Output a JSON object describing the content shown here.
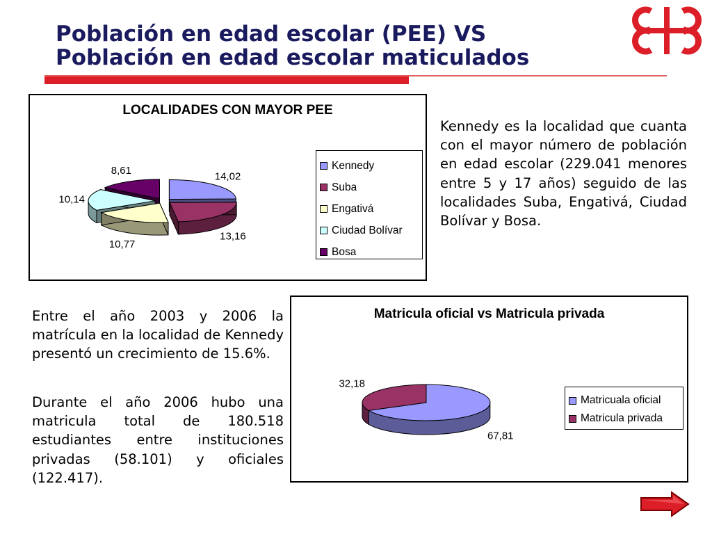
{
  "slide": {
    "title_line1": "Población en edad escolar (PEE) VS",
    "title_line2": "Población en edad escolar maticulados"
  },
  "colors": {
    "title": "#1a1a5e",
    "accent_red": "#dc1e28"
  },
  "logo": {
    "icon": "logo-icon"
  },
  "text": {
    "kennedy_paragraph": "Kennedy es la localidad que cuanta con el mayor número de población en edad escolar (229.041 menores entre 5 y 17 años) seguido de las localidades Suba, Engativá, Ciudad Bolívar y Bosa.",
    "growth_paragraph": "Entre el año 2003 y 2006 la matrícula en la localidad de Kennedy presentó un crecimiento de 15.6%.",
    "total_paragraph": "Durante el año 2006 hubo una matricula total de 180.518 estudiantes entre instituciones privadas (58.101) y oficiales (122.417)."
  },
  "chart_data": [
    {
      "type": "pie",
      "title": "LOCALIDADES CON MAYOR PEE",
      "categories": [
        "Kennedy",
        "Suba",
        "Engativá",
        "Ciudad Bolívar",
        "Bosa"
      ],
      "values": [
        14.02,
        13.16,
        10.77,
        10.14,
        8.61
      ],
      "value_labels": [
        "14,02",
        "13,16",
        "10,77",
        "10,14",
        "8,61"
      ],
      "colors": [
        "#9999ff",
        "#993366",
        "#ffffcc",
        "#ccffff",
        "#660066"
      ],
      "exploded": true,
      "three_d": true,
      "legend": "right"
    },
    {
      "type": "pie",
      "title": "Matricula oficial vs Matricula privada",
      "categories": [
        "Matricuala oficial",
        "Matricula privada"
      ],
      "values": [
        67.81,
        32.18
      ],
      "value_labels": [
        "67,81",
        "32,18"
      ],
      "colors": [
        "#9999ff",
        "#993366"
      ],
      "exploded": false,
      "three_d": true,
      "legend": "right"
    }
  ],
  "navigation": {
    "next_icon": "arrow-right-icon"
  }
}
